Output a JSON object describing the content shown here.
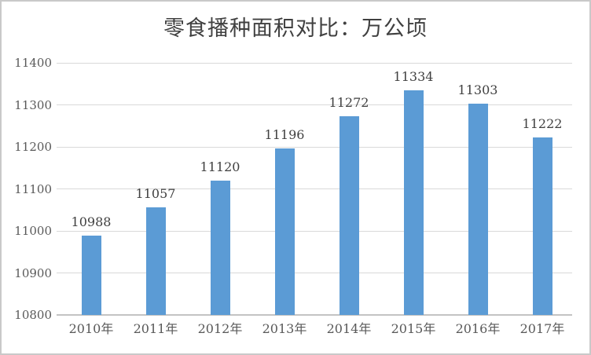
{
  "window": {
    "background": "#FFFFFF",
    "border_color": "#C9C9C9"
  },
  "chart_data": {
    "type": "bar",
    "title": "零食播种面积对比：万公顷",
    "categories": [
      "2010年",
      "2011年",
      "2012年",
      "2013年",
      "2014年",
      "2015年",
      "2016年",
      "2017年"
    ],
    "values": [
      10988,
      11057,
      11120,
      11196,
      11272,
      11334,
      11303,
      11222
    ],
    "yticks": [
      10800,
      10900,
      11000,
      11100,
      11200,
      11300,
      11400
    ],
    "ylim": [
      10800,
      11400
    ],
    "xlabel": "",
    "ylabel": "",
    "grid": true,
    "legend": "none",
    "data_labels": true,
    "bar_color": "#5B9BD5",
    "gridline_color": "#D9D9D9",
    "axis_line_color": "#C3C3C3",
    "title_color": "#404040",
    "data_label_color": "#404040",
    "tick_label_color": "#595959"
  }
}
